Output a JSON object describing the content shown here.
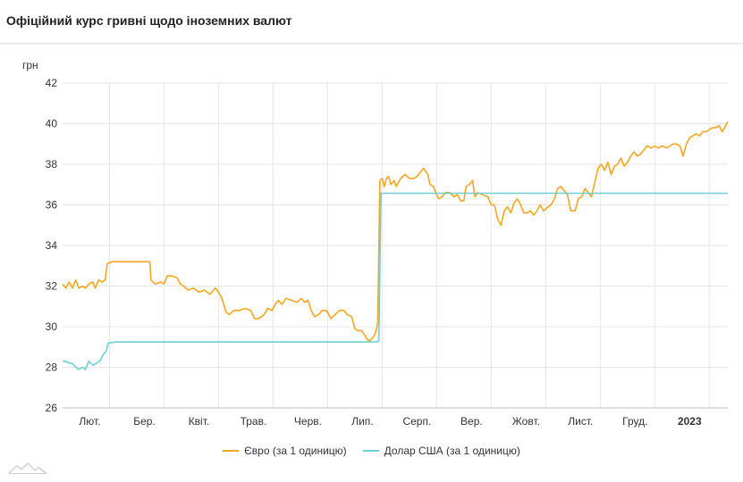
{
  "title": "Офіційний курс гривні щодо іноземних валют",
  "chart_data": {
    "type": "line",
    "ylabel": "грн",
    "ylim": [
      26,
      42
    ],
    "yticks": [
      26,
      28,
      30,
      32,
      34,
      36,
      38,
      40,
      42
    ],
    "xlim": [
      0,
      12.2
    ],
    "grid": true,
    "legend_position": "bottom",
    "x_ticks": [
      {
        "x": 0.5,
        "label": "Лют.",
        "bold": false
      },
      {
        "x": 1.5,
        "label": "Бер.",
        "bold": false
      },
      {
        "x": 2.5,
        "label": "Квіт.",
        "bold": false
      },
      {
        "x": 3.5,
        "label": "Трав.",
        "bold": false
      },
      {
        "x": 4.5,
        "label": "Черв.",
        "bold": false
      },
      {
        "x": 5.5,
        "label": "Лип.",
        "bold": false
      },
      {
        "x": 6.5,
        "label": "Серп.",
        "bold": false
      },
      {
        "x": 7.5,
        "label": "Вер.",
        "bold": false
      },
      {
        "x": 8.5,
        "label": "Жовт.",
        "bold": false
      },
      {
        "x": 9.5,
        "label": "Лист.",
        "bold": false
      },
      {
        "x": 10.5,
        "label": "Груд.",
        "bold": false
      },
      {
        "x": 11.5,
        "label": "2023",
        "bold": true
      }
    ],
    "x_gridlines": [
      0.86,
      1.86,
      2.86,
      3.86,
      4.86,
      5.86,
      6.86,
      7.86,
      8.86,
      9.86,
      10.86,
      11.86
    ],
    "series": [
      {
        "name": "Євро (за 1 одиницю)",
        "color": "#f5a623",
        "points": [
          [
            0.0,
            32.1
          ],
          [
            0.06,
            31.9
          ],
          [
            0.12,
            32.2
          ],
          [
            0.18,
            31.9
          ],
          [
            0.24,
            32.3
          ],
          [
            0.3,
            31.9
          ],
          [
            0.36,
            32.0
          ],
          [
            0.42,
            31.9
          ],
          [
            0.48,
            32.1
          ],
          [
            0.55,
            32.2
          ],
          [
            0.6,
            31.9
          ],
          [
            0.66,
            32.3
          ],
          [
            0.72,
            32.2
          ],
          [
            0.78,
            32.3
          ],
          [
            0.82,
            33.1
          ],
          [
            0.9,
            33.2
          ],
          [
            1.0,
            33.2
          ],
          [
            1.2,
            33.2
          ],
          [
            1.4,
            33.2
          ],
          [
            1.6,
            33.2
          ],
          [
            1.62,
            32.3
          ],
          [
            1.7,
            32.1
          ],
          [
            1.8,
            32.2
          ],
          [
            1.86,
            32.1
          ],
          [
            1.92,
            32.5
          ],
          [
            2.0,
            32.5
          ],
          [
            2.1,
            32.4
          ],
          [
            2.16,
            32.1
          ],
          [
            2.22,
            32.0
          ],
          [
            2.3,
            31.8
          ],
          [
            2.4,
            31.9
          ],
          [
            2.5,
            31.7
          ],
          [
            2.6,
            31.8
          ],
          [
            2.7,
            31.6
          ],
          [
            2.8,
            31.9
          ],
          [
            2.86,
            31.7
          ],
          [
            2.92,
            31.4
          ],
          [
            3.0,
            30.7
          ],
          [
            3.06,
            30.6
          ],
          [
            3.14,
            30.8
          ],
          [
            3.25,
            30.8
          ],
          [
            3.35,
            30.9
          ],
          [
            3.45,
            30.8
          ],
          [
            3.52,
            30.4
          ],
          [
            3.6,
            30.4
          ],
          [
            3.7,
            30.6
          ],
          [
            3.76,
            30.9
          ],
          [
            3.84,
            30.8
          ],
          [
            3.9,
            31.1
          ],
          [
            3.96,
            31.3
          ],
          [
            4.02,
            31.1
          ],
          [
            4.1,
            31.4
          ],
          [
            4.2,
            31.3
          ],
          [
            4.3,
            31.2
          ],
          [
            4.38,
            31.4
          ],
          [
            4.44,
            31.2
          ],
          [
            4.5,
            31.3
          ],
          [
            4.56,
            30.8
          ],
          [
            4.62,
            30.5
          ],
          [
            4.7,
            30.6
          ],
          [
            4.76,
            30.8
          ],
          [
            4.84,
            30.8
          ],
          [
            4.92,
            30.4
          ],
          [
            5.0,
            30.6
          ],
          [
            5.08,
            30.8
          ],
          [
            5.16,
            30.8
          ],
          [
            5.22,
            30.6
          ],
          [
            5.3,
            30.5
          ],
          [
            5.36,
            29.9
          ],
          [
            5.42,
            29.8
          ],
          [
            5.48,
            29.8
          ],
          [
            5.54,
            29.6
          ],
          [
            5.58,
            29.4
          ],
          [
            5.64,
            29.3
          ],
          [
            5.7,
            29.5
          ],
          [
            5.74,
            29.7
          ],
          [
            5.78,
            30.2
          ],
          [
            5.82,
            37.2
          ],
          [
            5.86,
            37.3
          ],
          [
            5.9,
            36.9
          ],
          [
            5.94,
            37.3
          ],
          [
            5.98,
            37.4
          ],
          [
            6.02,
            37.0
          ],
          [
            6.08,
            37.2
          ],
          [
            6.12,
            36.9
          ],
          [
            6.2,
            37.3
          ],
          [
            6.28,
            37.5
          ],
          [
            6.36,
            37.3
          ],
          [
            6.44,
            37.3
          ],
          [
            6.5,
            37.4
          ],
          [
            6.56,
            37.6
          ],
          [
            6.62,
            37.8
          ],
          [
            6.7,
            37.5
          ],
          [
            6.74,
            37.0
          ],
          [
            6.8,
            36.9
          ],
          [
            6.86,
            36.5
          ],
          [
            6.9,
            36.3
          ],
          [
            6.96,
            36.4
          ],
          [
            7.02,
            36.6
          ],
          [
            7.1,
            36.6
          ],
          [
            7.18,
            36.4
          ],
          [
            7.24,
            36.5
          ],
          [
            7.3,
            36.2
          ],
          [
            7.36,
            36.2
          ],
          [
            7.4,
            36.9
          ],
          [
            7.46,
            37.0
          ],
          [
            7.52,
            37.2
          ],
          [
            7.56,
            36.4
          ],
          [
            7.62,
            36.6
          ],
          [
            7.7,
            36.5
          ],
          [
            7.8,
            36.4
          ],
          [
            7.86,
            36.0
          ],
          [
            7.92,
            36.0
          ],
          [
            7.98,
            35.3
          ],
          [
            8.04,
            35.0
          ],
          [
            8.1,
            35.7
          ],
          [
            8.16,
            35.9
          ],
          [
            8.22,
            35.6
          ],
          [
            8.28,
            36.1
          ],
          [
            8.34,
            36.3
          ],
          [
            8.4,
            36.0
          ],
          [
            8.46,
            35.6
          ],
          [
            8.52,
            35.6
          ],
          [
            8.58,
            35.7
          ],
          [
            8.64,
            35.5
          ],
          [
            8.7,
            35.7
          ],
          [
            8.76,
            36.0
          ],
          [
            8.82,
            35.7
          ],
          [
            8.9,
            35.9
          ],
          [
            8.96,
            36.0
          ],
          [
            9.02,
            36.3
          ],
          [
            9.08,
            36.8
          ],
          [
            9.14,
            36.9
          ],
          [
            9.2,
            36.7
          ],
          [
            9.26,
            36.5
          ],
          [
            9.32,
            35.7
          ],
          [
            9.4,
            35.7
          ],
          [
            9.46,
            36.3
          ],
          [
            9.52,
            36.4
          ],
          [
            9.58,
            36.8
          ],
          [
            9.64,
            36.6
          ],
          [
            9.7,
            36.4
          ],
          [
            9.76,
            37.1
          ],
          [
            9.82,
            37.8
          ],
          [
            9.88,
            38.0
          ],
          [
            9.94,
            37.7
          ],
          [
            10.0,
            38.1
          ],
          [
            10.06,
            37.5
          ],
          [
            10.12,
            37.9
          ],
          [
            10.18,
            38.0
          ],
          [
            10.24,
            38.3
          ],
          [
            10.3,
            37.9
          ],
          [
            10.36,
            38.1
          ],
          [
            10.42,
            38.4
          ],
          [
            10.48,
            38.6
          ],
          [
            10.54,
            38.4
          ],
          [
            10.6,
            38.5
          ],
          [
            10.66,
            38.7
          ],
          [
            10.72,
            38.9
          ],
          [
            10.8,
            38.8
          ],
          [
            10.86,
            38.9
          ],
          [
            10.92,
            38.8
          ],
          [
            11.0,
            38.9
          ],
          [
            11.08,
            38.8
          ],
          [
            11.14,
            38.9
          ],
          [
            11.2,
            39.0
          ],
          [
            11.26,
            39.0
          ],
          [
            11.32,
            38.9
          ],
          [
            11.38,
            38.4
          ],
          [
            11.44,
            39.0
          ],
          [
            11.5,
            39.3
          ],
          [
            11.56,
            39.4
          ],
          [
            11.62,
            39.5
          ],
          [
            11.68,
            39.4
          ],
          [
            11.74,
            39.6
          ],
          [
            11.8,
            39.6
          ],
          [
            11.86,
            39.7
          ],
          [
            11.92,
            39.8
          ],
          [
            11.98,
            39.8
          ],
          [
            12.04,
            39.9
          ],
          [
            12.1,
            39.6
          ],
          [
            12.16,
            39.9
          ],
          [
            12.2,
            40.1
          ]
        ]
      },
      {
        "name": "Долар США (за 1 одиницю)",
        "color": "#6dcfd3",
        "points": [
          [
            0.0,
            28.3
          ],
          [
            0.06,
            28.3
          ],
          [
            0.12,
            28.2
          ],
          [
            0.18,
            28.2
          ],
          [
            0.24,
            28.0
          ],
          [
            0.3,
            27.9
          ],
          [
            0.36,
            28.0
          ],
          [
            0.42,
            27.9
          ],
          [
            0.48,
            28.3
          ],
          [
            0.52,
            28.2
          ],
          [
            0.56,
            28.1
          ],
          [
            0.62,
            28.2
          ],
          [
            0.68,
            28.3
          ],
          [
            0.74,
            28.6
          ],
          [
            0.8,
            28.8
          ],
          [
            0.84,
            29.2
          ],
          [
            1.0,
            29.25
          ],
          [
            2.0,
            29.25
          ],
          [
            3.0,
            29.25
          ],
          [
            4.0,
            29.25
          ],
          [
            5.0,
            29.25
          ],
          [
            5.76,
            29.25
          ],
          [
            5.8,
            29.3
          ],
          [
            5.84,
            36.57
          ],
          [
            7.0,
            36.57
          ],
          [
            8.0,
            36.57
          ],
          [
            9.0,
            36.57
          ],
          [
            10.0,
            36.57
          ],
          [
            11.0,
            36.57
          ],
          [
            12.2,
            36.57
          ]
        ]
      }
    ]
  }
}
